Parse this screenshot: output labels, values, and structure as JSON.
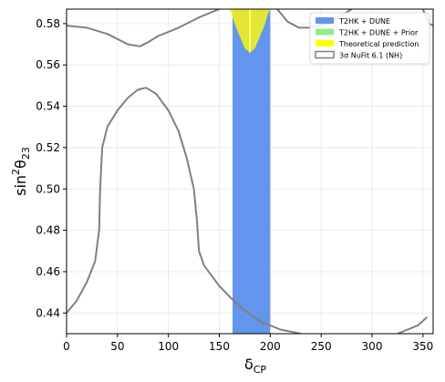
{
  "chart_data": {
    "type": "area",
    "xlabel": "δ",
    "xlabel_sub": "CP",
    "ylabel_main": "sin",
    "ylabel_sup": "2",
    "ylabel_theta": "θ",
    "ylabel_sub": "23",
    "xlim": [
      0,
      360
    ],
    "ylim": [
      0.43,
      0.587
    ],
    "xticks": [
      0,
      50,
      100,
      150,
      200,
      250,
      300,
      350
    ],
    "yticks": [
      0.44,
      0.46,
      0.48,
      0.5,
      0.52,
      0.54,
      0.56,
      0.58
    ],
    "ytick_labels": [
      "0.44",
      "0.46",
      "0.48",
      "0.50",
      "0.52",
      "0.54",
      "0.56",
      "0.58"
    ],
    "grid": true,
    "legend_position": "top-right",
    "legend": [
      {
        "label": "T2HK + DUNE",
        "color": "#6495ed",
        "kind": "patch"
      },
      {
        "label": "T2HK + DUNE + Prior",
        "color": "#90ee90",
        "kind": "patch"
      },
      {
        "label": "Theoretical prediction",
        "color": "#ffff00",
        "kind": "patch"
      },
      {
        "label": "3σ NuFit 6.1 (NH)",
        "color": "#808080",
        "kind": "outline"
      }
    ],
    "series": [
      {
        "name": "T2HK + DUNE",
        "color": "#6495ed",
        "band": {
          "x_min": 163,
          "x_max": 200,
          "y_min": 0.43,
          "y_max": 0.587
        }
      },
      {
        "name": "Theoretical prediction",
        "color": "#f0f020",
        "region": [
          [
            160,
            0.587
          ],
          [
            162,
            0.585
          ],
          [
            165,
            0.58
          ],
          [
            170,
            0.574
          ],
          [
            175,
            0.568
          ],
          [
            180,
            0.566
          ],
          [
            185,
            0.568
          ],
          [
            190,
            0.574
          ],
          [
            195,
            0.58
          ],
          [
            198,
            0.585
          ],
          [
            200,
            0.587
          ]
        ],
        "center_line": {
          "x": 180,
          "y_from": 0.566,
          "y_to": 0.587
        }
      },
      {
        "name": "3σ NuFit 6.1 (NH)",
        "color": "#808080",
        "contours": [
          [
            [
              0,
              0.579
            ],
            [
              20,
              0.578
            ],
            [
              40,
              0.575
            ],
            [
              60,
              0.57
            ],
            [
              72,
              0.569
            ],
            [
              80,
              0.571
            ],
            [
              90,
              0.574
            ],
            [
              110,
              0.578
            ],
            [
              130,
              0.583
            ],
            [
              150,
              0.587
            ]
          ],
          [
            [
              350,
              0.587
            ],
            [
              353,
              0.583
            ],
            [
              356,
              0.58
            ],
            [
              360,
              0.579
            ]
          ],
          [
            [
              0,
              0.44
            ],
            [
              10,
              0.446
            ],
            [
              20,
              0.455
            ],
            [
              28,
              0.465
            ],
            [
              32,
              0.48
            ],
            [
              33,
              0.5
            ],
            [
              35,
              0.52
            ],
            [
              40,
              0.53
            ],
            [
              50,
              0.538
            ],
            [
              60,
              0.544
            ],
            [
              70,
              0.548
            ],
            [
              78,
              0.549
            ],
            [
              88,
              0.546
            ],
            [
              100,
              0.538
            ],
            [
              110,
              0.528
            ],
            [
              118,
              0.515
            ],
            [
              125,
              0.5
            ],
            [
              128,
              0.485
            ],
            [
              130,
              0.47
            ],
            [
              135,
              0.463
            ],
            [
              150,
              0.453
            ],
            [
              170,
              0.443
            ],
            [
              190,
              0.436
            ],
            [
              210,
              0.432
            ],
            [
              230,
              0.43
            ]
          ],
          [
            [
              325,
              0.43
            ],
            [
              335,
              0.432
            ],
            [
              345,
              0.434
            ],
            [
              354,
              0.438
            ]
          ],
          [
            [
              207,
              0.587
            ],
            [
              217,
              0.581
            ],
            [
              228,
              0.578
            ],
            [
              240,
              0.578
            ],
            [
              255,
              0.58
            ],
            [
              270,
              0.584
            ],
            [
              280,
              0.587
            ]
          ]
        ]
      }
    ]
  }
}
